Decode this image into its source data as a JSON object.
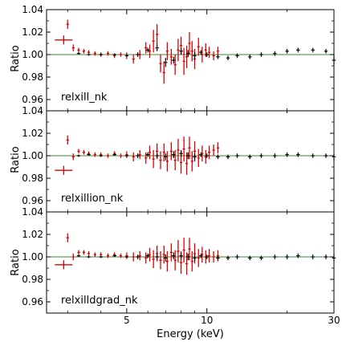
{
  "figure": {
    "xlabel": "Energy (keV)",
    "x_tick_labels": [
      "5",
      "10",
      "30"
    ],
    "ylabel": "Ratio",
    "y_tick_labels": [
      "0.96",
      "0.98",
      "1.00",
      "1.02",
      "1.04"
    ]
  },
  "chart_data": [
    {
      "type": "scatter",
      "model_label": "relxill_nk",
      "xlabel": "Energy (keV)",
      "ylabel": "Ratio",
      "xscale": "log",
      "xlim": [
        2.5,
        30
      ],
      "ylim": [
        0.95,
        1.04
      ],
      "reference_line": 1.0,
      "grid": false,
      "series": [
        {
          "color": "#e00000",
          "x": [
            2.9,
            3.0,
            3.15,
            3.3,
            3.45,
            3.6,
            3.8,
            4.0,
            4.25,
            4.5,
            4.75,
            5.0,
            5.3,
            5.6,
            5.9,
            6.1,
            6.3,
            6.5,
            6.7,
            6.9,
            7.1,
            7.35,
            7.6,
            7.8,
            8.0,
            8.2,
            8.4,
            8.6,
            8.8,
            9.0,
            9.3,
            9.6,
            9.9,
            10.2,
            10.6,
            11.0
          ],
          "y": [
            1.013,
            1.027,
            1.006,
            1.004,
            1.003,
            1.002,
            1.001,
            1.0,
            1.001,
            0.999,
            1.0,
            0.999,
            0.996,
            1.0,
            1.006,
            1.003,
            1.012,
            1.018,
            0.992,
            0.984,
            1.003,
            0.998,
            0.991,
            1.004,
            1.008,
            0.994,
            0.998,
            1.01,
            1.003,
            0.996,
            1.007,
            1.0,
            1.004,
            1.002,
            0.999,
            1.003
          ],
          "y_err": [
            0.004,
            0.004,
            0.003,
            0.002,
            0.002,
            0.002,
            0.002,
            0.002,
            0.002,
            0.002,
            0.002,
            0.003,
            0.004,
            0.004,
            0.005,
            0.006,
            0.01,
            0.009,
            0.008,
            0.01,
            0.008,
            0.007,
            0.009,
            0.01,
            0.008,
            0.012,
            0.01,
            0.01,
            0.009,
            0.009,
            0.008,
            0.007,
            0.006,
            0.005,
            0.004,
            0.004
          ]
        },
        {
          "color": "#000000",
          "x": [
            3.3,
            3.6,
            4.0,
            4.5,
            5.0,
            5.5,
            6.0,
            6.5,
            7.0,
            7.5,
            8.0,
            8.5,
            9.0,
            9.5,
            10.0,
            11.0,
            12.0,
            13.0,
            14.5,
            16.0,
            18.0,
            20.0,
            22.0,
            25.0,
            28.0,
            30.0
          ],
          "y": [
            1.001,
            1.0,
            1.0,
            1.0,
            0.999,
            1.0,
            1.004,
            1.006,
            0.993,
            0.995,
            1.003,
            1.001,
            0.999,
            1.002,
            1.0,
            0.998,
            0.997,
            0.999,
            0.998,
            1.0,
            1.001,
            1.003,
            1.004,
            1.004,
            1.003,
            0.995
          ],
          "y_err": [
            0.001,
            0.001,
            0.001,
            0.001,
            0.001,
            0.002,
            0.002,
            0.003,
            0.004,
            0.003,
            0.003,
            0.003,
            0.003,
            0.002,
            0.002,
            0.002,
            0.002,
            0.002,
            0.002,
            0.002,
            0.002,
            0.002,
            0.002,
            0.002,
            0.002,
            0.004
          ]
        }
      ]
    },
    {
      "type": "scatter",
      "model_label": "relxillion_nk",
      "xlabel": "Energy (keV)",
      "ylabel": "Ratio",
      "xscale": "log",
      "xlim": [
        2.5,
        30
      ],
      "ylim": [
        0.95,
        1.04
      ],
      "reference_line": 1.0,
      "grid": false,
      "series": [
        {
          "color": "#e00000",
          "x": [
            2.9,
            3.0,
            3.15,
            3.3,
            3.45,
            3.6,
            3.8,
            4.0,
            4.25,
            4.5,
            4.75,
            5.0,
            5.3,
            5.6,
            5.9,
            6.1,
            6.3,
            6.5,
            6.7,
            6.9,
            7.1,
            7.35,
            7.6,
            7.8,
            8.0,
            8.2,
            8.4,
            8.6,
            8.8,
            9.0,
            9.3,
            9.6,
            9.9,
            10.2,
            10.6,
            11.0
          ],
          "y": [
            0.987,
            1.014,
            0.999,
            1.004,
            1.003,
            1.002,
            1.001,
            1.001,
            1.0,
            1.002,
            1.0,
            1.001,
            0.999,
            1.001,
            0.998,
            1.003,
            0.997,
            1.004,
            0.996,
            1.003,
            0.995,
            1.004,
            0.996,
            1.005,
            0.994,
            1.006,
            0.993,
            1.007,
            0.995,
            1.004,
            0.998,
            1.002,
            0.999,
            1.003,
            1.005,
            1.007
          ],
          "y_err": [
            0.004,
            0.004,
            0.003,
            0.002,
            0.002,
            0.002,
            0.002,
            0.002,
            0.002,
            0.002,
            0.002,
            0.003,
            0.004,
            0.004,
            0.005,
            0.006,
            0.008,
            0.007,
            0.008,
            0.008,
            0.009,
            0.008,
            0.009,
            0.01,
            0.01,
            0.011,
            0.01,
            0.01,
            0.009,
            0.009,
            0.008,
            0.007,
            0.006,
            0.006,
            0.005,
            0.005
          ]
        },
        {
          "color": "#000000",
          "x": [
            3.3,
            3.6,
            4.0,
            4.5,
            5.0,
            5.5,
            6.0,
            6.5,
            7.0,
            7.5,
            8.0,
            8.5,
            9.0,
            9.5,
            10.0,
            11.0,
            12.0,
            13.0,
            14.5,
            16.0,
            18.0,
            20.0,
            22.0,
            25.0,
            28.0,
            30.0
          ],
          "y": [
            1.0,
            1.001,
            1.0,
            1.001,
            1.0,
            1.0,
            1.001,
            1.0,
            0.999,
            1.001,
            1.002,
            1.0,
            0.999,
            1.001,
            1.0,
            0.999,
            0.999,
            1.0,
            0.999,
            1.0,
            1.0,
            1.001,
            1.001,
            1.0,
            1.0,
            0.999
          ],
          "y_err": [
            0.001,
            0.001,
            0.001,
            0.001,
            0.001,
            0.002,
            0.002,
            0.002,
            0.003,
            0.003,
            0.003,
            0.003,
            0.003,
            0.002,
            0.002,
            0.002,
            0.002,
            0.002,
            0.002,
            0.002,
            0.002,
            0.002,
            0.002,
            0.002,
            0.002,
            0.003
          ]
        }
      ]
    },
    {
      "type": "scatter",
      "model_label": "relxilldgrad_nk",
      "xlabel": "Energy (keV)",
      "ylabel": "Ratio",
      "xscale": "log",
      "xlim": [
        2.5,
        30
      ],
      "ylim": [
        0.95,
        1.04
      ],
      "reference_line": 1.0,
      "grid": false,
      "series": [
        {
          "color": "#e00000",
          "x": [
            2.9,
            3.0,
            3.15,
            3.3,
            3.45,
            3.6,
            3.8,
            4.0,
            4.25,
            4.5,
            4.75,
            5.0,
            5.3,
            5.6,
            5.9,
            6.1,
            6.3,
            6.5,
            6.7,
            6.9,
            7.1,
            7.35,
            7.6,
            7.8,
            8.0,
            8.2,
            8.4,
            8.6,
            8.8,
            9.0,
            9.3,
            9.6,
            9.9,
            10.2,
            10.6,
            11.0
          ],
          "y": [
            0.993,
            1.017,
            1.0,
            1.004,
            1.004,
            1.003,
            1.002,
            1.002,
            1.001,
            1.002,
            1.001,
            1.001,
            1.0,
            1.001,
            0.999,
            1.002,
            0.998,
            1.003,
            0.997,
            1.002,
            0.996,
            1.004,
            0.997,
            1.005,
            0.995,
            1.006,
            0.994,
            1.007,
            0.996,
            1.003,
            0.999,
            1.002,
            1.0,
            1.001,
            1.0,
            1.001
          ],
          "y_err": [
            0.004,
            0.004,
            0.003,
            0.002,
            0.002,
            0.002,
            0.002,
            0.002,
            0.002,
            0.002,
            0.002,
            0.003,
            0.004,
            0.004,
            0.005,
            0.006,
            0.008,
            0.007,
            0.008,
            0.008,
            0.009,
            0.008,
            0.009,
            0.01,
            0.01,
            0.011,
            0.01,
            0.01,
            0.009,
            0.009,
            0.008,
            0.007,
            0.006,
            0.006,
            0.005,
            0.005
          ]
        },
        {
          "color": "#000000",
          "x": [
            3.3,
            3.6,
            4.0,
            4.5,
            5.0,
            5.5,
            6.0,
            6.5,
            7.0,
            7.5,
            8.0,
            8.5,
            9.0,
            9.5,
            10.0,
            11.0,
            12.0,
            13.0,
            14.5,
            16.0,
            18.0,
            20.0,
            22.0,
            25.0,
            28.0,
            30.0
          ],
          "y": [
            1.001,
            1.0,
            1.0,
            1.001,
            1.0,
            1.0,
            1.001,
            1.0,
            0.999,
            1.001,
            1.001,
            1.0,
            0.999,
            1.001,
            1.0,
            0.999,
            0.999,
            1.0,
            0.999,
            0.999,
            1.0,
            1.0,
            1.001,
            1.0,
            1.0,
            0.999
          ],
          "y_err": [
            0.001,
            0.001,
            0.001,
            0.001,
            0.001,
            0.002,
            0.002,
            0.002,
            0.003,
            0.003,
            0.003,
            0.003,
            0.003,
            0.002,
            0.002,
            0.002,
            0.002,
            0.002,
            0.002,
            0.002,
            0.002,
            0.002,
            0.002,
            0.002,
            0.002,
            0.003
          ]
        }
      ]
    }
  ]
}
